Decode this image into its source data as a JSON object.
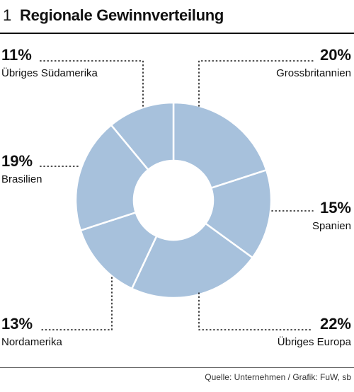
{
  "header": {
    "number": "1",
    "title": "Regionale Gewinnverteilung"
  },
  "chart_data": {
    "type": "pie",
    "donut": true,
    "title": "Regionale Gewinnverteilung",
    "slices": [
      {
        "label": "Grossbritannien",
        "value": 20,
        "value_label": "20%"
      },
      {
        "label": "Spanien",
        "value": 15,
        "value_label": "15%"
      },
      {
        "label": "Übriges Europa",
        "value": 22,
        "value_label": "22%"
      },
      {
        "label": "Nordamerika",
        "value": 13,
        "value_label": "13%"
      },
      {
        "label": "Brasilien",
        "value": 19,
        "value_label": "19%"
      },
      {
        "label": "Übriges Südamerika",
        "value": 11,
        "value_label": "11%"
      }
    ],
    "colors": {
      "slice_fill": "#a7c1dc",
      "slice_border": "#ffffff",
      "center": "#ffffff"
    }
  },
  "footer": {
    "source": "Quelle: Unternehmen / Grafik: FuW, sb"
  }
}
